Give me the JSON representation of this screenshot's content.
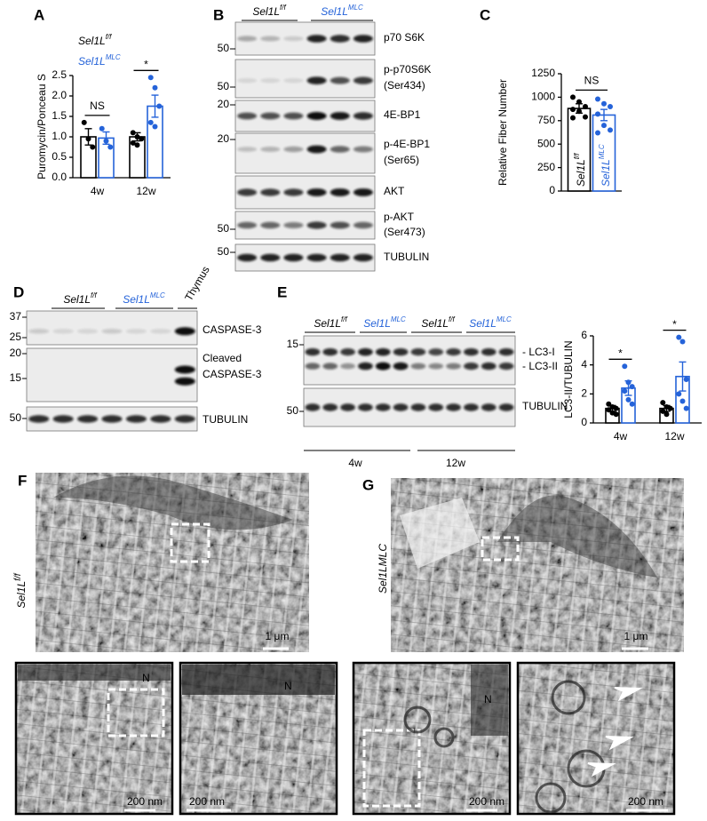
{
  "panel_labels": [
    "A",
    "B",
    "C",
    "D",
    "E",
    "F",
    "G"
  ],
  "chart_data": [
    {
      "type": "bar",
      "y_label": "Puromycin/Ponceau S",
      "categories": [
        "4w",
        "12w"
      ],
      "ylim": [
        0,
        2.5
      ],
      "yticks": [
        {
          "value": 0,
          "label": "0.0"
        },
        0.5,
        {
          "value": 1,
          "label": "1.0"
        },
        1.5,
        {
          "value": 2,
          "label": "2.0"
        },
        2.5
      ],
      "series": [
        {
          "name": "Sel1L",
          "name_sup": "f/f",
          "color": "#000000",
          "values": [
            1.0,
            1.0
          ],
          "errors": [
            0.2,
            0.1
          ],
          "points": [
            [
              1.35,
              0.95,
              0.75
            ],
            [
              1.1,
              1.0,
              0.95,
              0.85,
              0.8
            ]
          ]
        },
        {
          "name": "Sel1L",
          "name_sup": "MLC",
          "color": "#2563d9",
          "values": [
            0.97,
            1.75
          ],
          "errors": [
            0.15,
            0.27
          ],
          "points": [
            [
              1.2,
              0.9,
              0.75
            ],
            [
              2.45,
              2.2,
              1.75,
              1.35,
              1.25
            ]
          ]
        }
      ],
      "annotations": [
        "NS",
        "*"
      ]
    },
    {
      "type": "bar",
      "y_label": "Relative Fiber Number",
      "categories": [
        null
      ],
      "ylim": [
        0,
        1250
      ],
      "yticks": [
        0,
        250,
        500,
        750,
        1000,
        1250
      ],
      "series": [
        {
          "name": "Sel1L",
          "name_sup": "f/f",
          "color": "#000000",
          "values": [
            880
          ],
          "errors": [
            50
          ],
          "points": [
            [
              1000,
              950,
              900,
              870,
              850,
              790,
              780
            ]
          ]
        },
        {
          "name": "Sel1L",
          "name_sup": "MLC",
          "color": "#2563d9",
          "values": [
            810
          ],
          "errors": [
            60
          ],
          "points": [
            [
              980,
              930,
              900,
              820,
              700,
              650,
              620
            ]
          ]
        }
      ],
      "annotations": [
        "NS"
      ]
    },
    {
      "type": "bar",
      "y_label": "LC3-II/TUBULIN",
      "categories": [
        "4w",
        "12w"
      ],
      "ylim": [
        0,
        6
      ],
      "yticks": [
        0,
        2,
        4,
        6
      ],
      "series": [
        {
          "color": "#000000",
          "values": [
            1.0,
            1.0
          ],
          "errors": [
            0.2,
            0.2
          ],
          "points": [
            [
              1.3,
              1.1,
              1.0,
              0.9,
              0.7,
              0.6
            ],
            [
              1.4,
              1.1,
              1.0,
              0.8,
              0.6
            ]
          ]
        },
        {
          "color": "#2563d9",
          "values": [
            2.4,
            3.2
          ],
          "errors": [
            0.5,
            1.0
          ],
          "points": [
            [
              3.9,
              2.8,
              2.5,
              2.2,
              1.6,
              1.3
            ],
            [
              5.9,
              5.6,
              3.0,
              2.0,
              1.5,
              1.0
            ]
          ]
        }
      ],
      "annotations": [
        "*",
        "*"
      ]
    }
  ],
  "blot_b": {
    "groups": [
      {
        "name": "Sel1L",
        "sup": "f/f"
      },
      {
        "name": "Sel1L",
        "sup": "MLC"
      }
    ],
    "rows": [
      {
        "label": [
          "p70 S6K"
        ],
        "markers": [
          "50"
        ]
      },
      {
        "label": [
          "p-p70S6K",
          "(Ser434)"
        ],
        "markers": [
          "50"
        ]
      },
      {
        "label": [
          "4E-BP1"
        ],
        "markers": [
          "20"
        ]
      },
      {
        "label": [
          "p-4E-BP1",
          "(Ser65)"
        ],
        "markers": [
          "20"
        ]
      },
      {
        "label": [
          "AKT"
        ],
        "markers": []
      },
      {
        "label": [
          "p-AKT",
          "(Ser473)"
        ],
        "markers": [
          "50"
        ]
      },
      {
        "label": [
          "TUBULIN"
        ],
        "markers": [
          "50"
        ]
      }
    ]
  },
  "blot_d": {
    "groups": [
      {
        "name": "Sel1L",
        "sup": "f/f"
      },
      {
        "name": "Sel1L",
        "sup": "MLC"
      },
      {
        "name": "Thymus"
      }
    ],
    "rows": [
      {
        "label": [
          "CASPASE-3"
        ],
        "markers": [
          "37",
          "25"
        ]
      },
      {
        "label": [
          "Cleaved",
          "CASPASE-3"
        ],
        "markers": [
          "20",
          "15"
        ]
      },
      {
        "label": [
          "TUBULIN"
        ],
        "markers": [
          "50"
        ]
      }
    ]
  },
  "blot_e": {
    "groups": [
      {
        "name": "Sel1L",
        "sup": "f/f"
      },
      {
        "name": "Sel1L",
        "sup": "MLC"
      },
      {
        "name": "Sel1L",
        "sup": "f/f"
      },
      {
        "name": "Sel1L",
        "sup": "MLC"
      }
    ],
    "rows": [
      {
        "label": [
          "- LC3-I",
          "- LC3-II"
        ],
        "markers": [
          "15"
        ]
      },
      {
        "label": [
          "TUBULIN"
        ],
        "markers": [
          "50"
        ]
      }
    ],
    "timepoints": [
      "4w",
      "12w"
    ]
  },
  "em_f": {
    "genotype": {
      "name": "Sel1L",
      "sup": "f/f"
    },
    "scale_bars": [
      "1 μm",
      "200 nm",
      "200 nm"
    ],
    "labels": [
      "N",
      "N"
    ]
  },
  "em_g": {
    "genotype": "Sel1LMLC",
    "scale_bars": [
      "1 μm",
      "200 nm",
      "200 nm"
    ],
    "labels": [
      "N"
    ]
  }
}
